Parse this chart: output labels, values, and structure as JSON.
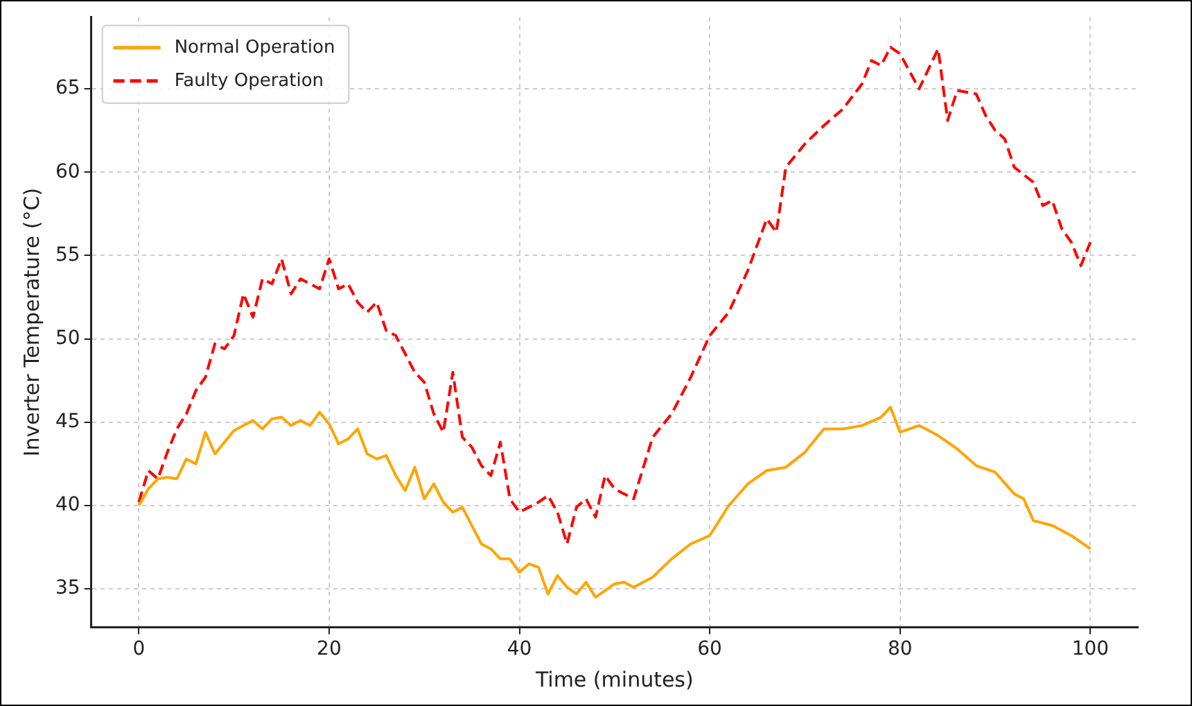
{
  "chart_data": {
    "type": "line",
    "xlabel": "Time (minutes)",
    "ylabel": "Inverter Temperature (°C)",
    "xlim": [
      -5,
      105
    ],
    "ylim": [
      32.7,
      69.3
    ],
    "xticks": [
      0,
      20,
      40,
      60,
      80,
      100
    ],
    "yticks": [
      35,
      40,
      45,
      50,
      55,
      60,
      65
    ],
    "grid": true,
    "legend": "top left",
    "series": [
      {
        "name": "Normal Operation",
        "color": "#ffa500",
        "line_style": "solid",
        "x": [
          0,
          1,
          2,
          3,
          4,
          5,
          6,
          7,
          8,
          9,
          10,
          11,
          12,
          13,
          14,
          15,
          16,
          17,
          18,
          19,
          20,
          21,
          22,
          23,
          24,
          25,
          26,
          27,
          28,
          29,
          30,
          31,
          32,
          33,
          34,
          35,
          36,
          37,
          38,
          39,
          40,
          41,
          42,
          43,
          44,
          45,
          46,
          47,
          48,
          49,
          50,
          51,
          52,
          54,
          56,
          58,
          60,
          62,
          64,
          66,
          68,
          70,
          72,
          74,
          76,
          78,
          79,
          80,
          82,
          84,
          86,
          88,
          90,
          92,
          93,
          94,
          96,
          98,
          100
        ],
        "values": [
          40.0,
          41.0,
          41.6,
          41.7,
          41.6,
          42.8,
          42.5,
          44.4,
          43.1,
          43.8,
          44.5,
          44.8,
          45.1,
          44.6,
          45.2,
          45.3,
          44.8,
          45.1,
          44.8,
          45.6,
          44.9,
          43.7,
          44.0,
          44.6,
          43.1,
          42.8,
          43.0,
          41.8,
          40.9,
          42.3,
          40.4,
          41.3,
          40.2,
          39.6,
          39.9,
          38.8,
          37.7,
          37.4,
          36.8,
          36.8,
          36.0,
          36.5,
          36.3,
          34.7,
          35.8,
          35.1,
          34.7,
          35.4,
          34.5,
          34.9,
          35.3,
          35.4,
          35.1,
          35.7,
          36.8,
          37.7,
          38.2,
          40.0,
          41.3,
          42.1,
          42.3,
          43.2,
          44.6,
          44.6,
          44.8,
          45.3,
          45.9,
          44.4,
          44.8,
          44.2,
          43.4,
          42.4,
          42.0,
          40.7,
          40.4,
          39.1,
          38.8,
          38.2,
          37.4
        ]
      },
      {
        "name": "Faulty Operation",
        "color": "#ff0000",
        "line_style": "dashed",
        "x": [
          0,
          1,
          2,
          3,
          4,
          5,
          6,
          7,
          8,
          9,
          10,
          11,
          12,
          13,
          14,
          15,
          16,
          17,
          18,
          19,
          20,
          21,
          22,
          23,
          24,
          25,
          26,
          27,
          28,
          29,
          30,
          31,
          32,
          33,
          34,
          35,
          36,
          37,
          38,
          39,
          40,
          41,
          42,
          43,
          44,
          45,
          46,
          47,
          48,
          49,
          50,
          52,
          54,
          56,
          58,
          60,
          62,
          64,
          66,
          67,
          68,
          70,
          72,
          74,
          76,
          77,
          78,
          79,
          80,
          82,
          84,
          85,
          86,
          88,
          89,
          90,
          91,
          92,
          94,
          95,
          96,
          97,
          98,
          99,
          100
        ],
        "values": [
          40.2,
          42.1,
          41.6,
          43.2,
          44.6,
          45.5,
          46.9,
          47.7,
          49.7,
          49.4,
          50.2,
          52.7,
          51.3,
          53.6,
          53.3,
          54.8,
          52.7,
          53.6,
          53.3,
          53.0,
          54.8,
          53.0,
          53.3,
          52.2,
          51.6,
          52.2,
          50.5,
          50.2,
          49.1,
          48.0,
          47.4,
          45.5,
          44.4,
          48.0,
          44.1,
          43.5,
          42.4,
          41.8,
          43.8,
          40.4,
          39.6,
          39.9,
          40.2,
          40.6,
          39.6,
          37.7,
          39.9,
          40.4,
          39.3,
          41.8,
          41.0,
          40.4,
          44.1,
          45.5,
          47.7,
          50.2,
          51.6,
          54.1,
          57.2,
          56.4,
          60.3,
          61.7,
          62.8,
          63.8,
          65.3,
          66.7,
          66.4,
          67.5,
          67.1,
          65.0,
          67.4,
          63.1,
          64.9,
          64.7,
          63.4,
          62.5,
          62.0,
          60.3,
          59.4,
          58.0,
          58.3,
          56.6,
          55.8,
          54.4,
          55.8
        ]
      }
    ]
  }
}
